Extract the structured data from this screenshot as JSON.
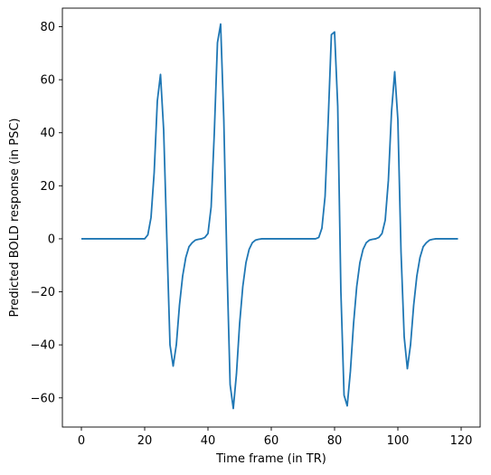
{
  "chart_data": {
    "type": "line",
    "title": "",
    "xlabel": "Time frame (in TR)",
    "ylabel": "Predicted BOLD response (in PSC)",
    "xlim": [
      -6,
      126
    ],
    "ylim": [
      -71,
      87
    ],
    "x_ticks": [
      0,
      20,
      40,
      60,
      80,
      100,
      120
    ],
    "y_ticks": [
      -60,
      -40,
      -20,
      0,
      20,
      40,
      60,
      80
    ],
    "grid": false,
    "legend": "none",
    "series": [
      {
        "color": "#1f77b4",
        "x": [
          0,
          1,
          2,
          3,
          4,
          5,
          6,
          7,
          8,
          9,
          10,
          11,
          12,
          13,
          14,
          15,
          16,
          17,
          18,
          19,
          20,
          21,
          22,
          23,
          24,
          25,
          26,
          27,
          28,
          29,
          30,
          31,
          32,
          33,
          34,
          35,
          36,
          37,
          38,
          39,
          40,
          41,
          42,
          43,
          44,
          45,
          46,
          47,
          48,
          49,
          50,
          51,
          52,
          53,
          54,
          55,
          56,
          57,
          58,
          59,
          60,
          61,
          62,
          63,
          64,
          65,
          66,
          67,
          68,
          69,
          70,
          71,
          72,
          73,
          74,
          75,
          76,
          77,
          78,
          79,
          80,
          81,
          82,
          83,
          84,
          85,
          86,
          87,
          88,
          89,
          90,
          91,
          92,
          93,
          94,
          95,
          96,
          97,
          98,
          99,
          100,
          101,
          102,
          103,
          104,
          105,
          106,
          107,
          108,
          109,
          110,
          111,
          112,
          113,
          114,
          115,
          116,
          117,
          118,
          119
        ],
        "y": [
          0,
          0,
          0,
          0,
          0,
          0,
          0,
          0,
          0,
          0,
          0,
          0,
          0,
          0,
          0,
          0,
          0,
          0,
          0,
          0,
          0,
          1.5,
          8,
          25,
          52,
          62,
          41,
          0,
          -40,
          -48,
          -40,
          -25,
          -14,
          -7,
          -3,
          -1.5,
          -0.5,
          -0.2,
          0,
          0.5,
          2,
          12,
          40,
          74,
          81,
          45,
          -10,
          -55,
          -64,
          -51,
          -32,
          -18,
          -9,
          -4,
          -1.5,
          -0.5,
          -0.2,
          0,
          0,
          0,
          0,
          0,
          0,
          0,
          0,
          0,
          0,
          0,
          0,
          0,
          0,
          0,
          0,
          0,
          0,
          0.5,
          4,
          16,
          45,
          77,
          78,
          50,
          -20,
          -59,
          -63,
          -50,
          -32,
          -18,
          -9,
          -4,
          -1.5,
          -0.5,
          -0.2,
          0,
          0.5,
          2,
          7,
          22,
          48,
          63,
          45,
          -5,
          -37,
          -49,
          -40,
          -25,
          -14,
          -7,
          -3,
          -1.5,
          -0.5,
          -0.2,
          0,
          0,
          0,
          0,
          0,
          0,
          0,
          0
        ]
      }
    ]
  }
}
